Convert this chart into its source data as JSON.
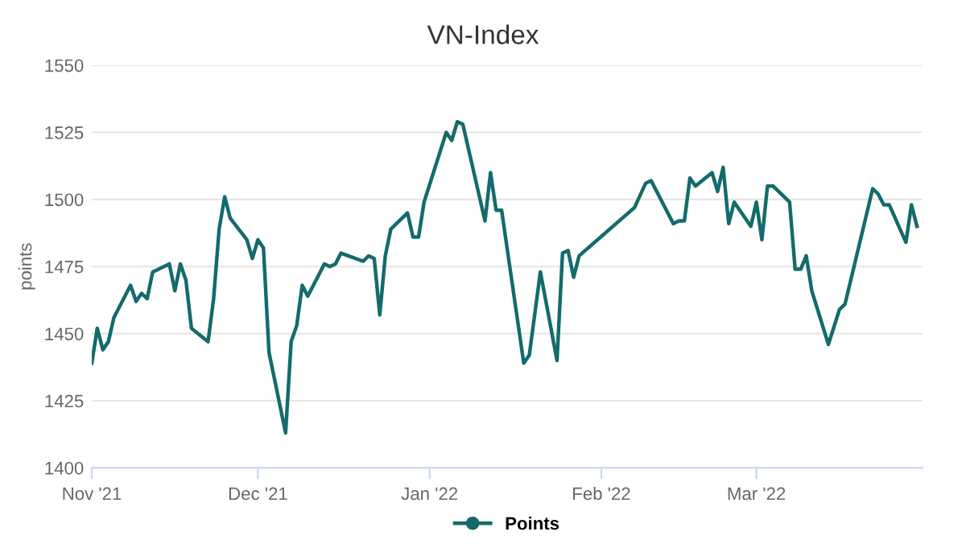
{
  "chart_data": {
    "type": "line",
    "title": "VN-Index",
    "ylabel": "points",
    "x": [
      "2021-11-01",
      "2021-11-02",
      "2021-11-03",
      "2021-11-04",
      "2021-11-05",
      "2021-11-08",
      "2021-11-09",
      "2021-11-10",
      "2021-11-11",
      "2021-11-12",
      "2021-11-15",
      "2021-11-16",
      "2021-11-17",
      "2021-11-18",
      "2021-11-19",
      "2021-11-22",
      "2021-11-23",
      "2021-11-24",
      "2021-11-25",
      "2021-11-26",
      "2021-11-29",
      "2021-11-30",
      "2021-12-01",
      "2021-12-02",
      "2021-12-03",
      "2021-12-06",
      "2021-12-07",
      "2021-12-08",
      "2021-12-09",
      "2021-12-10",
      "2021-12-13",
      "2021-12-14",
      "2021-12-15",
      "2021-12-16",
      "2021-12-20",
      "2021-12-21",
      "2021-12-22",
      "2021-12-23",
      "2021-12-24",
      "2021-12-25",
      "2021-12-28",
      "2021-12-29",
      "2021-12-30",
      "2021-12-31",
      "2022-01-04",
      "2022-01-05",
      "2022-01-06",
      "2022-01-07",
      "2022-01-11",
      "2022-01-12",
      "2022-01-13",
      "2022-01-14",
      "2022-01-18",
      "2022-01-19",
      "2022-01-21",
      "2022-01-24",
      "2022-01-25",
      "2022-01-26",
      "2022-01-27",
      "2022-01-28",
      "2022-02-07",
      "2022-02-09",
      "2022-02-10",
      "2022-02-14",
      "2022-02-15",
      "2022-02-16",
      "2022-02-17",
      "2022-02-18",
      "2022-02-21",
      "2022-02-22",
      "2022-02-23",
      "2022-02-24",
      "2022-02-25",
      "2022-02-28",
      "2022-03-01",
      "2022-03-02",
      "2022-03-03",
      "2022-03-04",
      "2022-03-07",
      "2022-03-08",
      "2022-03-09",
      "2022-03-10",
      "2022-03-11",
      "2022-03-14",
      "2022-03-16",
      "2022-03-17",
      "2022-03-22",
      "2022-03-23",
      "2022-03-24",
      "2022-03-25",
      "2022-03-28",
      "2022-03-29",
      "2022-03-30"
    ],
    "series": [
      {
        "name": "Points",
        "color": "#146b6b",
        "values": [
          1439,
          1452,
          1444,
          1447,
          1456,
          1468,
          1462,
          1465,
          1463,
          1473,
          1476,
          1466,
          1476,
          1470,
          1452,
          1447,
          1463,
          1489,
          1501,
          1493,
          1485,
          1478,
          1485,
          1482,
          1443,
          1413,
          1447,
          1453,
          1468,
          1464,
          1476,
          1475,
          1476,
          1480,
          1477,
          1479,
          1478,
          1457,
          1479,
          1489,
          1495,
          1486,
          1486,
          1499,
          1525,
          1522,
          1529,
          1528,
          1492,
          1510,
          1496,
          1496,
          1439,
          1442,
          1473,
          1440,
          1480,
          1481,
          1471,
          1479,
          1497,
          1506,
          1507,
          1491,
          1492,
          1492,
          1508,
          1505,
          1510,
          1503,
          1512,
          1491,
          1499,
          1490,
          1499,
          1485,
          1505,
          1505,
          1499,
          1474,
          1474,
          1479,
          1466,
          1446,
          1459,
          1461,
          1504,
          1502,
          1498,
          1498,
          1484,
          1498,
          1490
        ]
      }
    ],
    "xlim": [
      "2021-11-01",
      "2022-03-31"
    ],
    "xticks": [
      {
        "value": "2021-11-01",
        "label": "Nov '21"
      },
      {
        "value": "2021-12-01",
        "label": "Dec '21"
      },
      {
        "value": "2022-01-01",
        "label": "Jan '22"
      },
      {
        "value": "2022-02-01",
        "label": "Feb '22"
      },
      {
        "value": "2022-03-01",
        "label": "Mar '22"
      }
    ],
    "ylim": [
      1400,
      1550
    ],
    "yticks": [
      1400,
      1425,
      1450,
      1475,
      1500,
      1525,
      1550
    ],
    "grid": "y",
    "legend": "bottom",
    "marker": "none",
    "line_style": "solid"
  }
}
